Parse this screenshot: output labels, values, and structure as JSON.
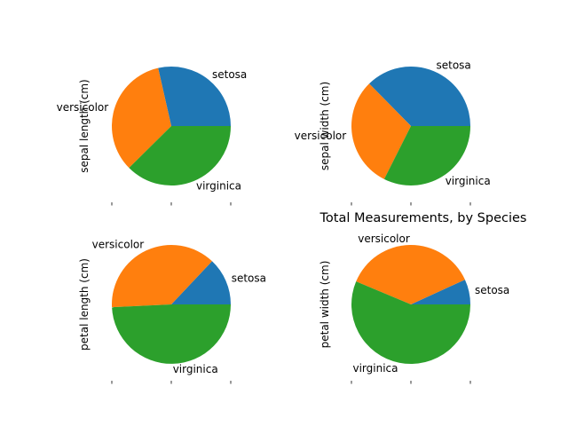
{
  "figure": {
    "suptitle": "Total Measurements, by Species"
  },
  "chart_data": [
    {
      "type": "pie",
      "ylabel": "sepal length (cm)",
      "labels": [
        "setosa",
        "versicolor",
        "virginica"
      ],
      "values": [
        250.3,
        296.8,
        329.4
      ],
      "colors": [
        "#1f77b4",
        "#ff7f0e",
        "#2ca02c"
      ]
    },
    {
      "type": "pie",
      "ylabel": "sepal width (cm)",
      "labels": [
        "setosa",
        "versicolor",
        "virginica"
      ],
      "values": [
        171.4,
        138.5,
        148.7
      ],
      "colors": [
        "#1f77b4",
        "#ff7f0e",
        "#2ca02c"
      ]
    },
    {
      "type": "pie",
      "ylabel": "petal length (cm)",
      "labels": [
        "setosa",
        "versicolor",
        "virginica"
      ],
      "values": [
        73.1,
        213.0,
        277.6
      ],
      "colors": [
        "#1f77b4",
        "#ff7f0e",
        "#2ca02c"
      ]
    },
    {
      "type": "pie",
      "ylabel": "petal width (cm)",
      "labels": [
        "setosa",
        "versicolor",
        "virginica"
      ],
      "values": [
        12.3,
        66.3,
        101.3
      ],
      "colors": [
        "#1f77b4",
        "#ff7f0e",
        "#2ca02c"
      ]
    }
  ]
}
